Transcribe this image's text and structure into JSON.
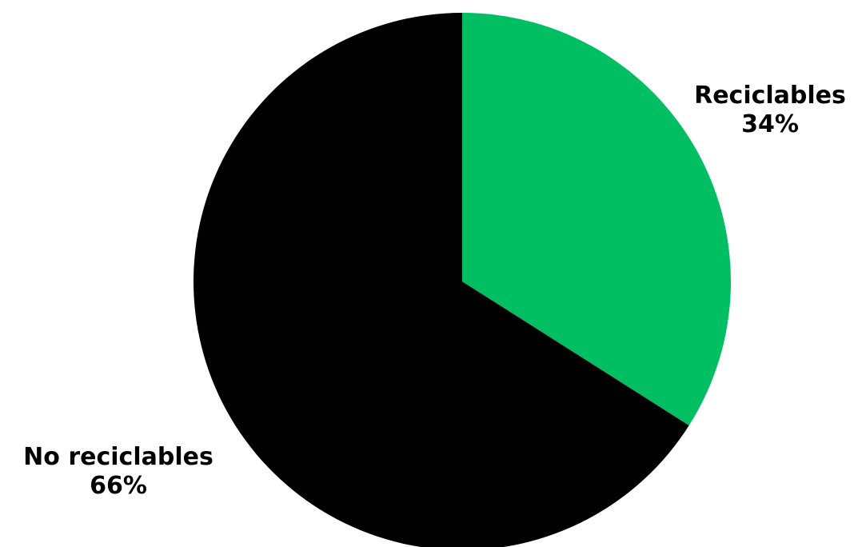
{
  "chart_data": {
    "type": "pie",
    "categories": [
      "Reciclables",
      "No reciclables"
    ],
    "values": [
      34,
      66
    ],
    "data_labels": [
      "34%",
      "66%"
    ],
    "colors": [
      "#00bf63",
      "#000000"
    ],
    "start_angle": "12 o'clock",
    "direction": "clockwise",
    "legend": "none",
    "title": ""
  }
}
